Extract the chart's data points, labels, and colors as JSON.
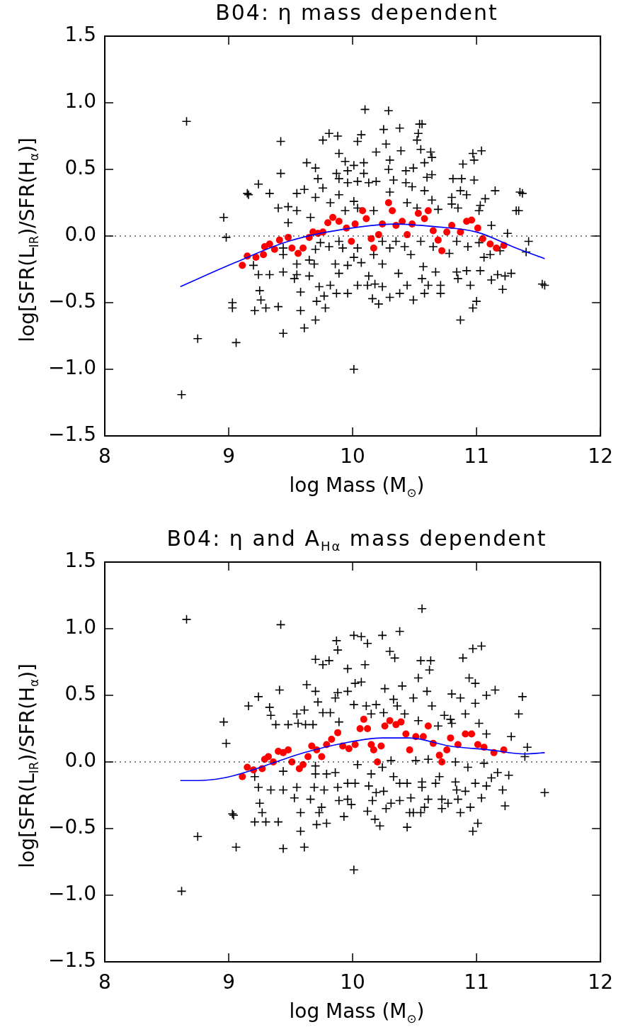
{
  "chart_data": [
    {
      "type": "scatter",
      "title": "B04: η mass dependent",
      "xlabel": "log Mass (M$_{⊙}$)",
      "ylabel": "log[SFR(L$_{IR}$)/SFR(H$_{α}$)]",
      "xlim": [
        8,
        12
      ],
      "xticks": [
        8,
        9,
        10,
        11,
        12
      ],
      "ylim": [
        -1.5,
        1.5
      ],
      "yticks": [
        {
          "value": -1.5,
          "label": "−1.5"
        },
        {
          "value": -1,
          "label": "−1.0"
        },
        {
          "value": -0.5,
          "label": "−0.5"
        },
        {
          "value": 0,
          "label": "0.0"
        },
        {
          "value": 0.5,
          "label": "0.5"
        },
        {
          "value": 1,
          "label": "1.0"
        },
        {
          "value": 1.5,
          "label": "1.5"
        }
      ],
      "ref_lines": [
        {
          "axis": "y",
          "value": 0,
          "line_style": "dotted",
          "color": "#000000"
        }
      ],
      "series": [
        {
          "type": "scatter",
          "marker": "cross",
          "color": "#000000",
          "x": [
            8.66,
            8.62,
            8.75,
            8.96,
            8.98,
            9.03,
            9.06,
            9.15,
            10.01,
            10.1,
            10.29,
            10.54,
            11.53,
            11.32,
            11.35,
            9.42,
            9.42,
            9.24,
            9.16,
            9.33,
            9.76,
            9.81,
            9.88,
            10.04,
            10.07,
            10.25,
            10.27,
            10.38,
            10.56,
            10.53,
            10.52,
            10.55,
            10.19,
            10.3,
            10.39,
            9.89,
            9.94,
            10.01,
            10.09,
            9.63,
            9.7,
            9.72,
            9.87,
            9.96,
            10.09,
            10.29,
            10.43,
            10.49,
            10.58,
            10.63,
            10.64,
            10.64,
            10.6,
            10.89,
            10.97,
            11.04,
            10.98,
            10.81,
            10.88,
            10.98,
            11.15,
            11.37,
            11.34,
            10.87,
            10.92,
            10.58,
            10.48,
            10.43,
            10.33,
            10.19,
            10.13,
            10.04,
            9.96,
            9.89,
            9.76,
            9.61,
            9.55,
            9.7,
            9.82,
            9.89,
            10.01,
            10.3,
            10.44,
            10.64,
            10.8,
            10.8,
            11.03,
            11.07,
            11.12,
            11.02,
            10.85,
            10.69,
            10.52,
            10.17,
            10.04,
            9.94,
            9.66,
            9.48,
            9.4,
            9.55,
            9.48,
            9.44,
            9.44,
            9.2,
            9.24,
            9.33,
            9.44,
            9.55,
            9.69,
            9.55,
            9.65,
            9.53,
            9.58,
            9.25,
            9.26,
            9.03,
            9.21,
            9.3,
            9.4,
            9.58,
            9.71,
            9.78,
            9.7,
            9.61,
            9.44,
            9.73,
            9.77,
            9.82,
            9.87,
            9.89,
            9.86,
            9.96,
            10.01,
            9.92,
            9.81,
            9.7,
            10.04,
            10.07,
            9.96,
            10.04,
            10.13,
            10.12,
            10.16,
            10.21,
            10.18,
            10.24,
            10.24,
            10.3,
            10.17,
            10.3,
            10.38,
            10.37,
            10.44,
            10.49,
            10.47,
            10.55,
            10.57,
            10.56,
            10.61,
            10.67,
            10.58,
            10.71,
            10.71,
            10.78,
            10.84,
            10.84,
            10.85,
            10.92,
            10.95,
            11.0,
            10.97,
            10.87,
            11.03,
            11.06,
            11.11,
            11.12,
            11.17,
            11.23,
            11.28,
            11.21,
            11.19,
            11.4,
            11.42,
            11.25,
            11.55,
            11.02,
            10.93,
            10.65,
            10.42,
            10.35,
            10.24,
            9.89,
            9.74,
            9.65
          ],
          "values": [
            0.86,
            -1.19,
            -0.77,
            0.14,
            -0.01,
            -0.5,
            -0.8,
            0.32,
            -1.0,
            0.95,
            0.94,
            0.84,
            -0.36,
            0.19,
            0.33,
            0.71,
            0.47,
            0.39,
            0.31,
            0.32,
            0.72,
            0.77,
            0.75,
            0.71,
            0.76,
            0.8,
            0.69,
            0.81,
            0.84,
            0.77,
            0.72,
            0.65,
            0.63,
            0.57,
            0.64,
            0.62,
            0.56,
            0.53,
            0.55,
            0.55,
            0.51,
            0.43,
            0.47,
            0.49,
            0.47,
            0.5,
            0.49,
            0.51,
            0.55,
            0.63,
            0.59,
            0.46,
            0.44,
            0.54,
            0.62,
            0.64,
            0.57,
            0.43,
            0.43,
            0.42,
            0.34,
            0.32,
            0.19,
            0.34,
            0.31,
            0.34,
            0.37,
            0.4,
            0.42,
            0.41,
            0.4,
            0.41,
            0.4,
            0.43,
            0.36,
            0.35,
            0.32,
            0.29,
            0.25,
            0.31,
            0.26,
            0.33,
            0.25,
            0.27,
            0.29,
            0.24,
            0.23,
            0.28,
            0.08,
            0.19,
            0.21,
            0.2,
            0.21,
            0.19,
            0.21,
            0.19,
            0.14,
            0.22,
            0.21,
            0.19,
            0.1,
            -0.09,
            -0.14,
            -0.22,
            -0.29,
            -0.29,
            -0.27,
            -0.21,
            -0.21,
            -0.29,
            -0.3,
            -0.32,
            -0.42,
            -0.41,
            -0.48,
            -0.54,
            -0.56,
            -0.54,
            -0.53,
            -0.56,
            -0.49,
            -0.54,
            -0.63,
            -0.69,
            -0.73,
            -0.38,
            -0.45,
            -0.37,
            -0.43,
            -0.28,
            -0.21,
            -0.22,
            -0.16,
            -0.09,
            -0.08,
            -0.1,
            -0.09,
            -0.2,
            -0.43,
            -0.37,
            -0.3,
            -0.37,
            -0.47,
            -0.51,
            -0.36,
            -0.38,
            -0.21,
            -0.09,
            -0.14,
            -0.46,
            -0.43,
            -0.28,
            -0.37,
            -0.48,
            -0.14,
            -0.04,
            -0.23,
            -0.32,
            -0.37,
            -0.27,
            -0.43,
            -0.43,
            -0.37,
            -0.13,
            -0.04,
            -0.27,
            -0.32,
            -0.26,
            -0.37,
            -0.49,
            -0.54,
            -0.63,
            -0.26,
            -0.16,
            -0.14,
            -0.33,
            -0.29,
            -0.3,
            -0.28,
            -0.4,
            -0.11,
            -0.12,
            -0.04,
            0.02,
            -0.37,
            -0.05,
            -0.08,
            -0.08,
            -0.08,
            -0.04,
            -0.04,
            -0.04,
            -0.05,
            -0.18
          ]
        },
        {
          "type": "scatter",
          "marker": "circle",
          "color": "#ff0000",
          "x": [
            9.11,
            9.15,
            9.22,
            9.28,
            9.29,
            9.33,
            9.37,
            9.41,
            9.48,
            9.51,
            9.56,
            9.6,
            9.65,
            9.68,
            9.72,
            9.76,
            9.8,
            9.84,
            9.89,
            9.95,
            9.99,
            10.02,
            10.08,
            10.11,
            10.15,
            10.17,
            10.21,
            10.24,
            10.29,
            10.32,
            10.35,
            10.4,
            10.44,
            10.48,
            10.53,
            10.58,
            10.61,
            10.65,
            10.69,
            10.72,
            10.76,
            10.8,
            10.87,
            10.92,
            10.96,
            11.01,
            11.05,
            11.11,
            11.16,
            11.22
          ],
          "values": [
            -0.22,
            -0.15,
            -0.16,
            -0.14,
            -0.08,
            -0.06,
            -0.1,
            -0.03,
            -0.01,
            -0.09,
            -0.13,
            -0.09,
            -0.01,
            0.03,
            0.02,
            0.03,
            0.1,
            0.14,
            0.11,
            0.06,
            -0.04,
            0.09,
            0.19,
            0.13,
            -0.02,
            -0.09,
            0.01,
            0.09,
            0.25,
            0.19,
            0.08,
            0.11,
            0.01,
            0.09,
            0.17,
            0.13,
            0.19,
            0.04,
            -0.03,
            -0.11,
            0.03,
            0.08,
            0.03,
            0.11,
            0.12,
            0.06,
            -0.02,
            -0.06,
            -0.09,
            -0.07
          ]
        },
        {
          "type": "line",
          "marker": "none",
          "color": "#0000ff",
          "x": [
            8.61,
            9.05,
            9.48,
            9.92,
            10.35,
            10.67,
            11.0,
            11.32,
            11.55
          ],
          "values": [
            -0.38,
            -0.2,
            -0.04,
            0.05,
            0.09,
            0.07,
            0.03,
            -0.09,
            -0.17
          ]
        }
      ]
    },
    {
      "type": "scatter",
      "title": "B04: η and A$_{Hα}$ mass dependent",
      "xlabel": "log Mass (M$_{⊙}$)",
      "ylabel": "log[SFR(L$_{IR}$)/SFR(H$_{α}$)]",
      "xlim": [
        8,
        12
      ],
      "xticks": [
        8,
        9,
        10,
        11,
        12
      ],
      "ylim": [
        -1.5,
        1.5
      ],
      "yticks": [
        {
          "value": -1.5,
          "label": "−1.5"
        },
        {
          "value": -1,
          "label": "−1.0"
        },
        {
          "value": -0.5,
          "label": "−0.5"
        },
        {
          "value": 0,
          "label": "0.0"
        },
        {
          "value": 0.5,
          "label": "0.5"
        },
        {
          "value": 1,
          "label": "1.0"
        },
        {
          "value": 1.5,
          "label": "1.5"
        }
      ],
      "ref_lines": [
        {
          "axis": "y",
          "value": 0,
          "line_style": "dotted",
          "color": "#000000"
        }
      ],
      "series": [
        {
          "type": "scatter",
          "marker": "cross",
          "color": "#000000",
          "x": [
            8.66,
            9.42,
            10.56,
            9.87,
            9.88,
            10.01,
            10.07,
            10.12,
            10.24,
            10.38,
            10.3,
            10.34,
            9.7,
            9.76,
            9.81,
            9.96,
            10.1,
            10.55,
            10.63,
            10.62,
            10.89,
            10.97,
            11.04,
            10.94,
            10.99,
            11.15,
            11.37,
            11.34,
            11.41,
            11.39,
            11.55,
            11.28,
            11.08,
            11.08,
            10.99,
            10.87,
            10.8,
            10.91,
            10.79,
            10.74,
            10.64,
            10.6,
            10.53,
            10.49,
            10.42,
            10.4,
            10.33,
            10.26,
            10.19,
            10.11,
            10.07,
            10.02,
            9.96,
            9.88,
            9.86,
            9.72,
            9.7,
            9.63,
            9.41,
            9.24,
            9.16,
            9.33,
            9.34,
            9.38,
            9.48,
            9.55,
            9.61,
            9.56,
            9.62,
            9.68,
            9.76,
            9.82,
            9.89,
            10.01,
            10.15,
            10.25,
            10.36,
            10.53,
            10.69,
            10.8,
            11.02,
            8.96,
            8.98,
            9.44,
            9.21,
            9.24,
            9.34,
            9.44,
            9.55,
            9.69,
            9.77,
            9.53,
            9.58,
            9.66,
            9.25,
            9.27,
            9.04,
            9.21,
            9.3,
            9.4,
            9.58,
            9.71,
            9.79,
            9.73,
            9.75,
            9.93,
            9.89,
            9.96,
            9.99,
            9.88,
            9.96,
            10.02,
            9.79,
            9.86,
            9.7,
            10.15,
            10.13,
            10.19,
            10.25,
            10.12,
            10.16,
            10.18,
            10.22,
            10.27,
            10.31,
            10.38,
            10.33,
            10.38,
            10.44,
            10.47,
            10.46,
            10.44,
            10.49,
            10.55,
            10.58,
            10.56,
            10.56,
            10.61,
            10.67,
            10.7,
            10.72,
            10.77,
            10.72,
            10.85,
            10.87,
            10.84,
            10.83,
            10.91,
            10.95,
            11.01,
            10.97,
            10.99,
            11.04,
            11.08,
            11.12,
            11.17,
            11.21,
            11.23,
            11.26,
            11.06,
            10.93,
            10.83,
            10.61,
            10.51,
            10.31,
            10.24,
            10.04,
            9.7,
            8.75,
            8.62,
            9.06,
            9.03,
            10.01,
            9.44,
            9.61
          ],
          "values": [
            1.07,
            1.03,
            1.15,
            0.91,
            0.84,
            0.95,
            0.94,
            0.89,
            0.95,
            0.98,
            0.83,
            0.78,
            0.77,
            0.73,
            0.76,
            0.7,
            0.73,
            0.76,
            0.76,
            0.69,
            0.78,
            0.85,
            0.87,
            0.63,
            0.59,
            0.54,
            0.49,
            0.36,
            0.11,
            0.04,
            -0.23,
            0.19,
            0.21,
            0.5,
            0.44,
            0.48,
            0.51,
            0.36,
            0.32,
            0.35,
            0.42,
            0.53,
            0.63,
            0.48,
            0.36,
            0.57,
            0.47,
            0.55,
            0.43,
            0.42,
            0.6,
            0.59,
            0.53,
            0.52,
            0.48,
            0.45,
            0.53,
            0.58,
            0.54,
            0.49,
            0.42,
            0.41,
            0.35,
            0.28,
            0.28,
            0.36,
            0.39,
            0.29,
            0.28,
            0.28,
            0.37,
            0.37,
            0.3,
            0.43,
            0.36,
            0.37,
            0.42,
            0.31,
            0.27,
            0.29,
            0.29,
            0.3,
            0.14,
            -0.07,
            -0.11,
            -0.19,
            -0.21,
            -0.21,
            -0.19,
            -0.19,
            -0.21,
            -0.27,
            -0.38,
            -0.28,
            -0.31,
            -0.38,
            -0.4,
            -0.45,
            -0.45,
            -0.45,
            -0.52,
            -0.47,
            -0.46,
            -0.38,
            -0.34,
            -0.41,
            -0.29,
            -0.28,
            -0.32,
            -0.19,
            -0.16,
            -0.16,
            -0.09,
            -0.08,
            -0.09,
            -0.09,
            -0.18,
            -0.23,
            -0.22,
            -0.37,
            -0.29,
            -0.43,
            -0.48,
            -0.35,
            -0.31,
            -0.29,
            -0.11,
            -0.16,
            -0.16,
            -0.27,
            -0.38,
            -0.49,
            -0.38,
            -0.38,
            -0.34,
            -0.19,
            -0.15,
            -0.28,
            -0.16,
            -0.11,
            -0.28,
            -0.31,
            -0.35,
            -0.28,
            -0.38,
            -0.21,
            -0.15,
            -0.22,
            -0.34,
            -0.46,
            -0.52,
            -0.16,
            -0.27,
            -0.18,
            -0.12,
            -0.08,
            -0.21,
            -0.33,
            -0.1,
            -0.01,
            -0.04,
            0.0,
            0.02,
            0.01,
            0.01,
            -0.04,
            -0.02,
            -0.03,
            -0.56,
            -0.97,
            -0.64,
            -0.39,
            -0.81,
            -0.65,
            -0.64
          ]
        },
        {
          "type": "scatter",
          "marker": "circle",
          "color": "#ff0000",
          "x": [
            9.11,
            9.15,
            9.2,
            9.27,
            9.29,
            9.32,
            9.36,
            9.4,
            9.44,
            9.48,
            9.51,
            9.57,
            9.6,
            9.64,
            9.67,
            9.71,
            9.75,
            9.79,
            9.83,
            9.88,
            9.92,
            9.97,
            10.02,
            10.06,
            10.09,
            10.12,
            10.15,
            10.17,
            10.2,
            10.23,
            10.26,
            10.3,
            10.35,
            10.39,
            10.43,
            10.46,
            10.51,
            10.57,
            10.61,
            10.65,
            10.7,
            10.72,
            10.76,
            10.79,
            10.85,
            10.91,
            10.96,
            11.01,
            11.06,
            11.14,
            11.22
          ],
          "values": [
            -0.11,
            -0.04,
            -0.06,
            -0.05,
            0.02,
            0.04,
            0.0,
            0.08,
            0.07,
            0.09,
            0.0,
            -0.05,
            -0.02,
            0.04,
            0.12,
            0.09,
            0.04,
            0.13,
            0.17,
            0.22,
            0.12,
            0.1,
            0.13,
            0.25,
            0.32,
            0.25,
            0.13,
            0.09,
            0.0,
            0.12,
            0.27,
            0.31,
            0.28,
            0.3,
            0.21,
            0.09,
            0.19,
            0.19,
            0.27,
            0.14,
            0.05,
            0.0,
            0.09,
            0.18,
            0.13,
            0.21,
            0.21,
            0.13,
            0.11,
            0.07,
            0.09
          ]
        },
        {
          "type": "line",
          "marker": "none",
          "color": "#0000ff",
          "x": [
            8.61,
            8.75,
            8.96,
            9.16,
            9.38,
            9.61,
            9.92,
            10.24,
            10.46,
            10.78,
            11.11,
            11.39,
            11.55
          ],
          "values": [
            -0.14,
            -0.14,
            -0.12,
            -0.07,
            0.0,
            0.07,
            0.14,
            0.18,
            0.18,
            0.12,
            0.09,
            0.06,
            0.07
          ]
        }
      ]
    }
  ]
}
